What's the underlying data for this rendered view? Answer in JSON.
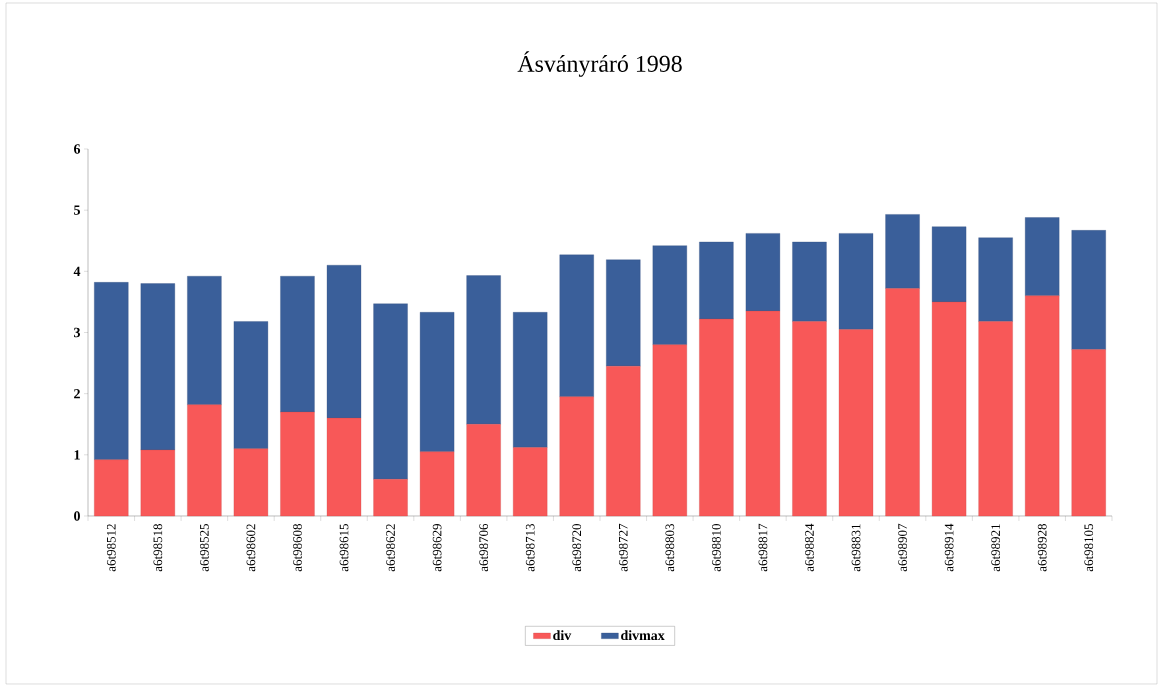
{
  "chart_data": {
    "type": "bar",
    "title": "Ásványráró 1998",
    "categories": [
      "a6t98512",
      "a6t98518",
      "a6t98525",
      "a6t98602",
      "a6t98608",
      "a6t98615",
      "a6t98622",
      "a6t98629",
      "a6t98706",
      "a6t98713",
      "a6t98720",
      "a6t98727",
      "a6t98803",
      "a6t98810",
      "a6t98817",
      "a6t98824",
      "a6t98831",
      "a6t98907",
      "a6t98914",
      "a6t98921",
      "a6t98928",
      "a6t98105"
    ],
    "series": [
      {
        "name": "div",
        "color": "#f85858",
        "values": [
          0.92,
          1.08,
          1.82,
          1.1,
          1.7,
          1.6,
          0.6,
          1.05,
          1.5,
          1.12,
          1.95,
          2.45,
          2.8,
          3.22,
          3.35,
          3.18,
          3.05,
          3.72,
          3.5,
          3.18,
          3.6,
          2.72
        ]
      },
      {
        "name": "divmax",
        "color": "#3a5f9a",
        "values": [
          2.9,
          2.72,
          2.1,
          2.08,
          2.22,
          2.5,
          2.87,
          2.28,
          2.43,
          2.21,
          2.32,
          1.74,
          1.62,
          1.26,
          1.27,
          1.3,
          1.57,
          1.21,
          1.23,
          1.37,
          1.28,
          1.95
        ]
      }
    ],
    "stacked": true,
    "ylim": [
      0,
      6
    ],
    "yticks": [
      0,
      1,
      2,
      3,
      4,
      5,
      6
    ],
    "grid": false,
    "legend": "bottom"
  }
}
